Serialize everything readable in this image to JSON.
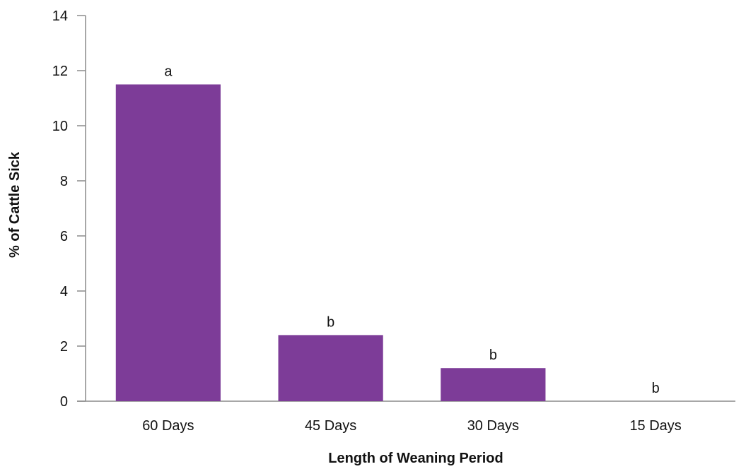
{
  "chart_data": {
    "type": "bar",
    "categories": [
      "60 Days",
      "45 Days",
      "30 Days",
      "15 Days"
    ],
    "values": [
      11.5,
      2.4,
      1.2,
      0
    ],
    "bar_labels": [
      "a",
      "b",
      "b",
      "b"
    ],
    "xlabel": "Length of Weaning Period",
    "ylabel": "% of Cattle Sick",
    "ylim": [
      0,
      14
    ],
    "yticks": [
      0,
      2,
      4,
      6,
      8,
      10,
      12,
      14
    ],
    "grid": false,
    "legend": "none",
    "bar_color": "#7d3c98"
  }
}
